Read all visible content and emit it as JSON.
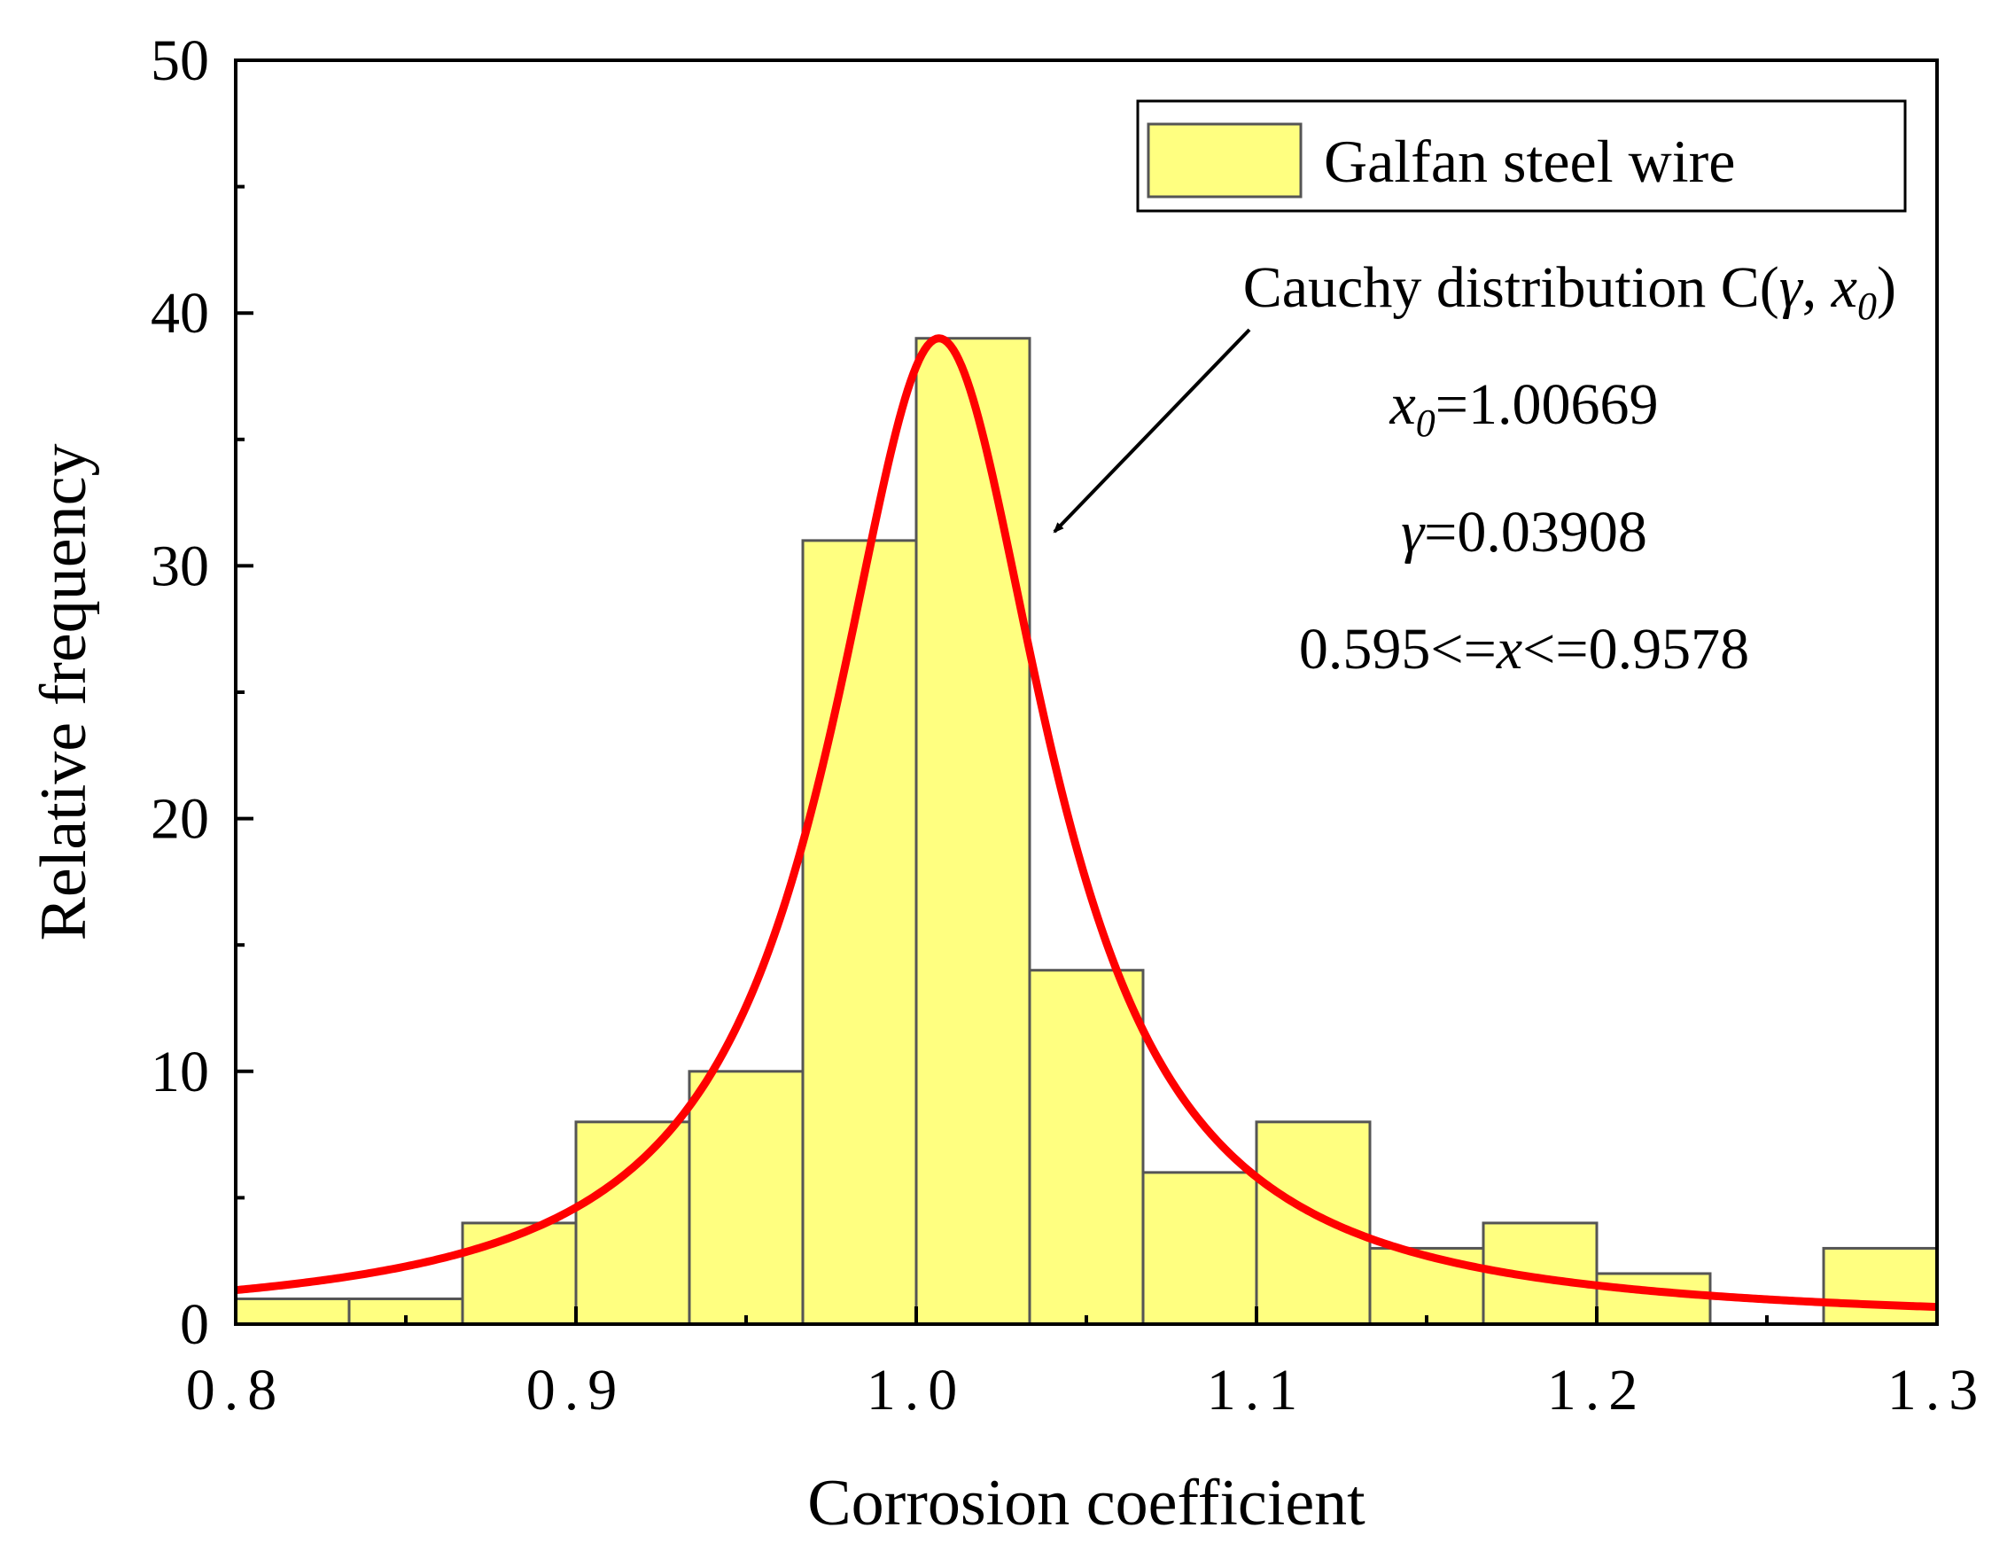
{
  "chart_data": {
    "type": "bar",
    "title": "",
    "xlabel": "Corrosion coefficient",
    "ylabel": "Relative frequency",
    "xlim": [
      0.8,
      1.3
    ],
    "ylim": [
      0,
      50
    ],
    "x_ticks": [
      0.8,
      0.9,
      1.0,
      1.1,
      1.2,
      1.3
    ],
    "x_tick_labels": [
      "0.8",
      "0.9",
      "1.0",
      "1.1",
      "1.2",
      "1.3"
    ],
    "y_ticks": [
      0,
      10,
      20,
      30,
      40,
      50
    ],
    "y_tick_labels": [
      "0",
      "10",
      "20",
      "30",
      "40",
      "50"
    ],
    "grid": false,
    "legend_position": "top-right",
    "series": [
      {
        "name": "Galfan steel wire",
        "type": "histogram",
        "color": "#ffff80",
        "edge_color": "#555555",
        "bin_width": 0.03333,
        "bin_starts": [
          0.8,
          0.83333,
          0.86667,
          0.9,
          0.93333,
          0.96667,
          1.0,
          1.03333,
          1.06667,
          1.1,
          1.13333,
          1.16667,
          1.2,
          1.23333,
          1.26667
        ],
        "values": [
          1,
          1,
          4,
          8,
          10,
          31,
          39,
          14,
          6,
          8,
          3,
          4,
          2,
          0,
          3
        ]
      },
      {
        "name": "Cauchy distribution C(γ, x0)",
        "type": "line",
        "color": "#ff0000",
        "distribution": "cauchy",
        "x0": 1.00669,
        "gamma": 0.03908,
        "peak": 39.0
      }
    ],
    "annotations": {
      "curve_label_prefix": "Cauchy distribution C(",
      "curve_label_gamma": "γ",
      "curve_label_sep": ", ",
      "curve_label_x": "x",
      "curve_label_sub": "0",
      "curve_label_suffix": ")",
      "x0_symbol": "x",
      "x0_sub": "0",
      "x0_value": "=1.00669",
      "gamma_symbol": "γ",
      "gamma_value": "=0.03908",
      "range_left": "0.595<=",
      "range_var": "x",
      "range_right": "<=0.9578"
    }
  }
}
